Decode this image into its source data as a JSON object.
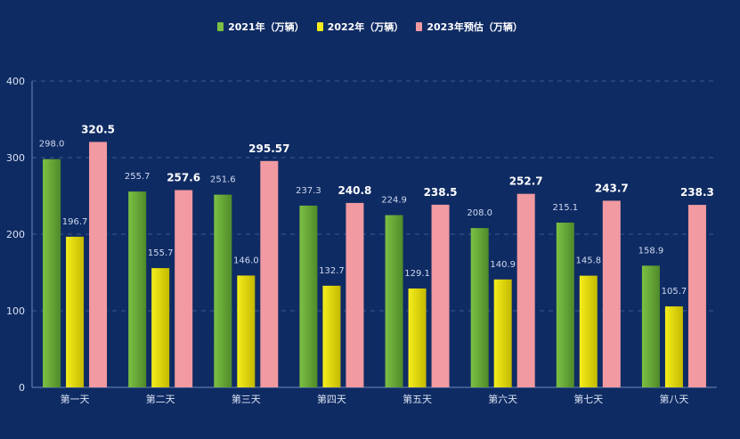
{
  "chart_data": {
    "type": "bar",
    "categories": [
      "第一天",
      "第二天",
      "第三天",
      "第四天",
      "第五天",
      "第六天",
      "第七天",
      "第八天"
    ],
    "series": [
      {
        "name": "2021年（万辆）",
        "values": [
          298.0,
          255.7,
          251.6,
          237.3,
          224.9,
          208.0,
          215.1,
          158.9
        ],
        "labels": [
          "298.0",
          "255.7",
          "251.6",
          "237.3",
          "224.9",
          "208.0",
          "215.1",
          "158.9"
        ],
        "color": "#7cc143",
        "color_dark": "#4f8a2a"
      },
      {
        "name": "2022年（万辆）",
        "values": [
          196.7,
          155.7,
          146.0,
          132.7,
          129.1,
          140.9,
          145.8,
          105.7
        ],
        "labels": [
          "196.7",
          "155.7",
          "146.0",
          "132.7",
          "129.1",
          "140.9",
          "145.8",
          "105.7"
        ],
        "color": "#f5ee1c",
        "color_dark": "#c4b900"
      },
      {
        "name": "2023年预估（万辆）",
        "values": [
          320.5,
          257.6,
          295.57,
          240.8,
          238.5,
          252.7,
          243.7,
          238.3
        ],
        "labels": [
          "320.5",
          "257.6",
          "295.57",
          "240.8",
          "238.5",
          "252.7",
          "243.7",
          "238.3"
        ],
        "color": "#f19aa1",
        "color_dark": "#f19aa1"
      }
    ],
    "yticks": [
      "0",
      "100",
      "200",
      "300",
      "400"
    ],
    "ylim": [
      0,
      400
    ],
    "grid": true,
    "legend": "top-center"
  }
}
